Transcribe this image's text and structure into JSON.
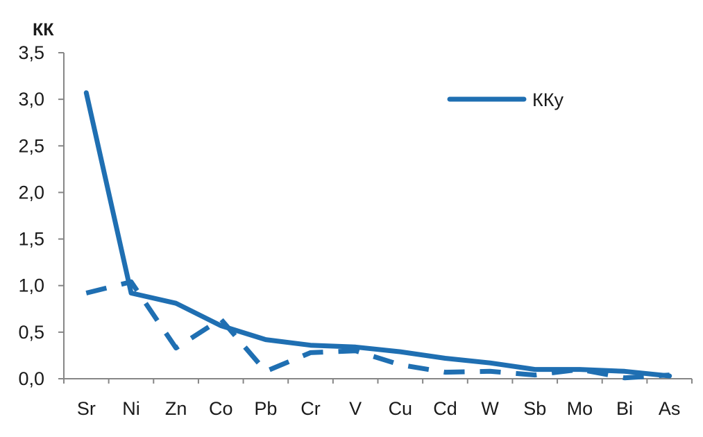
{
  "chart_data": {
    "type": "line",
    "ylabel": "КК",
    "ylim": [
      0,
      3.5
    ],
    "y_ticks": [
      "0,0",
      "0,5",
      "1,0",
      "1,5",
      "2,0",
      "2,5",
      "3,0",
      "3,5"
    ],
    "y_tick_values": [
      0,
      0.5,
      1.0,
      1.5,
      2.0,
      2.5,
      3.0,
      3.5
    ],
    "categories": [
      "Sr",
      "Ni",
      "Zn",
      "Co",
      "Pb",
      "Cr",
      "V",
      "Cu",
      "Cd",
      "W",
      "Sb",
      "Mo",
      "Bi",
      "As"
    ],
    "series": [
      {
        "name": "ККу",
        "style": "solid",
        "color": "#1f6fb2",
        "values": [
          3.07,
          0.92,
          0.81,
          0.57,
          0.42,
          0.36,
          0.34,
          0.29,
          0.22,
          0.17,
          0.1,
          0.1,
          0.08,
          0.03
        ]
      },
      {
        "style": "dashed",
        "color": "#1f6fb2",
        "values": [
          0.92,
          1.04,
          0.33,
          0.64,
          0.08,
          0.28,
          0.3,
          0.15,
          0.07,
          0.08,
          0.04,
          0.1,
          0.01,
          0.04
        ]
      }
    ],
    "legend_position": "top-right",
    "grid": false
  }
}
